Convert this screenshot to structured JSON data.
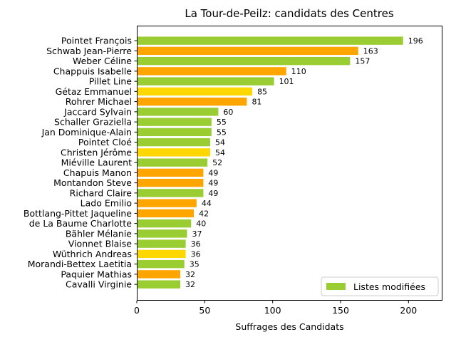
{
  "chart_data": {
    "type": "bar",
    "orientation": "horizontal",
    "title": "La Tour-de-Peilz: candidats des Centres",
    "xlabel": "Suffrages des Candidats",
    "ylabel": "",
    "xlim": [
      0,
      225
    ],
    "xticks": [
      0,
      50,
      100,
      150,
      200
    ],
    "grid": false,
    "legend": {
      "placement": "lower-right",
      "entries": [
        {
          "label": "Listes modifiées",
          "color": "#9acd32"
        }
      ]
    },
    "colors": {
      "green": "#9acd32",
      "orange": "#ffa500",
      "yellow": "#ffd700"
    },
    "categories": [
      "Pointet François",
      "Schwab Jean-Pierre",
      "Weber Céline",
      "Chappuis Isabelle",
      "Pillet Line",
      "Gétaz Emmanuel",
      "Rohrer Michael",
      "Jaccard Sylvain",
      "Schaller Graziella",
      "Jan Dominique-Alain",
      "Pointet Cloé",
      "Christen Jérôme",
      "Miéville Laurent",
      "Chapuis Manon",
      "Montandon Steve",
      "Richard Claire",
      "Lado Emilio",
      "Bottlang-Pittet Jaqueline",
      "de La Baume Charlotte",
      "Bähler Mélanie",
      "Vionnet Blaise",
      "Wüthrich Andreas",
      "Morandi-Bettex Laetitia",
      "Paquier Mathias",
      "Cavalli Virginie"
    ],
    "values": [
      196,
      163,
      157,
      110,
      101,
      85,
      81,
      60,
      55,
      55,
      54,
      54,
      52,
      49,
      49,
      49,
      44,
      42,
      40,
      37,
      36,
      36,
      35,
      32,
      32
    ],
    "bar_colors": [
      "green",
      "orange",
      "green",
      "orange",
      "green",
      "yellow",
      "orange",
      "green",
      "green",
      "green",
      "green",
      "yellow",
      "green",
      "orange",
      "orange",
      "green",
      "orange",
      "orange",
      "green",
      "green",
      "green",
      "yellow",
      "green",
      "orange",
      "green"
    ]
  }
}
